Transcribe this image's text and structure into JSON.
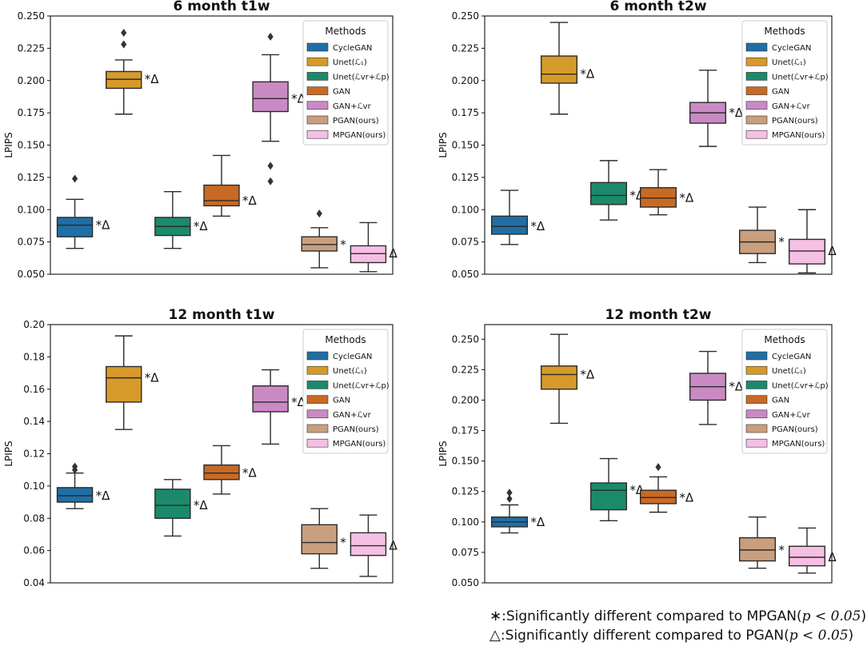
{
  "chart_data": [
    {
      "type": "box",
      "title": "6 month t1w",
      "ylabel": "LPIPS",
      "ylim": [
        0.05,
        0.25
      ],
      "yticks": [
        0.05,
        0.075,
        0.1,
        0.125,
        0.15,
        0.175,
        0.2,
        0.225,
        0.25
      ],
      "ytick_labels": [
        "0.050",
        "0.075",
        "0.100",
        "0.125",
        "0.150",
        "0.175",
        "0.200",
        "0.225",
        "0.250"
      ],
      "boxes": [
        {
          "method": "CycleGAN",
          "q1": 0.079,
          "median": 0.088,
          "q3": 0.094,
          "whislo": 0.07,
          "whishi": 0.108,
          "fliers": [
            0.124
          ],
          "annotation": "*Δ"
        },
        {
          "method": "Unet(L1)",
          "q1": 0.194,
          "median": 0.201,
          "q3": 0.207,
          "whislo": 0.174,
          "whishi": 0.216,
          "fliers": [
            0.228,
            0.237
          ],
          "annotation": "*Δ"
        },
        {
          "method": "Unet(Lvr+Lp)",
          "q1": 0.08,
          "median": 0.087,
          "q3": 0.094,
          "whislo": 0.07,
          "whishi": 0.114,
          "fliers": [],
          "annotation": "*Δ"
        },
        {
          "method": "GAN",
          "q1": 0.103,
          "median": 0.107,
          "q3": 0.119,
          "whislo": 0.095,
          "whishi": 0.142,
          "fliers": [],
          "annotation": "*Δ"
        },
        {
          "method": "GAN+Lvr",
          "q1": 0.176,
          "median": 0.186,
          "q3": 0.199,
          "whislo": 0.153,
          "whishi": 0.22,
          "fliers": [
            0.234,
            0.134,
            0.122
          ],
          "annotation": "*Δ"
        },
        {
          "method": "PGAN(ours)",
          "q1": 0.068,
          "median": 0.073,
          "q3": 0.079,
          "whislo": 0.055,
          "whishi": 0.086,
          "fliers": [
            0.097
          ],
          "annotation": "*"
        },
        {
          "method": "MPGAN(ours)",
          "q1": 0.059,
          "median": 0.066,
          "q3": 0.072,
          "whislo": 0.052,
          "whishi": 0.09,
          "fliers": [],
          "annotation": "Δ"
        }
      ]
    },
    {
      "type": "box",
      "title": "6 month t2w",
      "ylabel": "LPIPS",
      "ylim": [
        0.05,
        0.25
      ],
      "yticks": [
        0.05,
        0.075,
        0.1,
        0.125,
        0.15,
        0.175,
        0.2,
        0.225,
        0.25
      ],
      "ytick_labels": [
        "0.050",
        "0.075",
        "0.100",
        "0.125",
        "0.150",
        "0.175",
        "0.200",
        "0.225",
        "0.250"
      ],
      "boxes": [
        {
          "method": "CycleGAN",
          "q1": 0.081,
          "median": 0.087,
          "q3": 0.095,
          "whislo": 0.073,
          "whishi": 0.115,
          "fliers": [],
          "annotation": "*Δ"
        },
        {
          "method": "Unet(L1)",
          "q1": 0.198,
          "median": 0.205,
          "q3": 0.219,
          "whislo": 0.174,
          "whishi": 0.245,
          "fliers": [],
          "annotation": "*Δ"
        },
        {
          "method": "Unet(Lvr+Lp)",
          "q1": 0.104,
          "median": 0.111,
          "q3": 0.121,
          "whislo": 0.092,
          "whishi": 0.138,
          "fliers": [],
          "annotation": "*Δ"
        },
        {
          "method": "GAN",
          "q1": 0.102,
          "median": 0.109,
          "q3": 0.117,
          "whislo": 0.096,
          "whishi": 0.131,
          "fliers": [],
          "annotation": "*Δ"
        },
        {
          "method": "GAN+Lvr",
          "q1": 0.167,
          "median": 0.175,
          "q3": 0.183,
          "whislo": 0.149,
          "whishi": 0.208,
          "fliers": [],
          "annotation": "*Δ"
        },
        {
          "method": "PGAN(ours)",
          "q1": 0.066,
          "median": 0.075,
          "q3": 0.084,
          "whislo": 0.059,
          "whishi": 0.102,
          "fliers": [],
          "annotation": "*"
        },
        {
          "method": "MPGAN(ours)",
          "q1": 0.058,
          "median": 0.068,
          "q3": 0.077,
          "whislo": 0.051,
          "whishi": 0.1,
          "fliers": [],
          "annotation": "Δ"
        }
      ]
    },
    {
      "type": "box",
      "title": "12 month t1w",
      "ylabel": "LPIPS",
      "ylim": [
        0.04,
        0.2
      ],
      "yticks": [
        0.04,
        0.06,
        0.08,
        0.1,
        0.12,
        0.14,
        0.16,
        0.18,
        0.2
      ],
      "ytick_labels": [
        "0.04",
        "0.06",
        "0.08",
        "0.10",
        "0.12",
        "0.14",
        "0.16",
        "0.18",
        "0.20"
      ],
      "boxes": [
        {
          "method": "CycleGAN",
          "q1": 0.09,
          "median": 0.094,
          "q3": 0.099,
          "whislo": 0.086,
          "whishi": 0.108,
          "fliers": [
            0.11,
            0.112
          ],
          "annotation": "*Δ"
        },
        {
          "method": "Unet(L1)",
          "q1": 0.152,
          "median": 0.167,
          "q3": 0.174,
          "whislo": 0.135,
          "whishi": 0.193,
          "fliers": [],
          "annotation": "*Δ"
        },
        {
          "method": "Unet(Lvr+Lp)",
          "q1": 0.08,
          "median": 0.088,
          "q3": 0.098,
          "whislo": 0.069,
          "whishi": 0.104,
          "fliers": [],
          "annotation": "*Δ"
        },
        {
          "method": "GAN",
          "q1": 0.104,
          "median": 0.108,
          "q3": 0.113,
          "whislo": 0.095,
          "whishi": 0.125,
          "fliers": [],
          "annotation": "*Δ"
        },
        {
          "method": "GAN+Lvr",
          "q1": 0.146,
          "median": 0.152,
          "q3": 0.162,
          "whislo": 0.126,
          "whishi": 0.172,
          "fliers": [],
          "annotation": "*Δ"
        },
        {
          "method": "PGAN(ours)",
          "q1": 0.058,
          "median": 0.065,
          "q3": 0.076,
          "whislo": 0.049,
          "whishi": 0.086,
          "fliers": [],
          "annotation": "*"
        },
        {
          "method": "MPGAN(ours)",
          "q1": 0.057,
          "median": 0.063,
          "q3": 0.071,
          "whislo": 0.044,
          "whishi": 0.082,
          "fliers": [],
          "annotation": "Δ"
        }
      ]
    },
    {
      "type": "box",
      "title": "12 month t2w",
      "ylabel": "LPIPS",
      "ylim": [
        0.05,
        0.262
      ],
      "yticks": [
        0.05,
        0.075,
        0.1,
        0.125,
        0.15,
        0.175,
        0.2,
        0.225,
        0.25
      ],
      "ytick_labels": [
        "0.050",
        "0.075",
        "0.100",
        "0.125",
        "0.150",
        "0.175",
        "0.200",
        "0.225",
        "0.250"
      ],
      "boxes": [
        {
          "method": "CycleGAN",
          "q1": 0.096,
          "median": 0.1,
          "q3": 0.104,
          "whislo": 0.091,
          "whishi": 0.114,
          "fliers": [
            0.119,
            0.124
          ],
          "annotation": "*Δ"
        },
        {
          "method": "Unet(L1)",
          "q1": 0.209,
          "median": 0.221,
          "q3": 0.228,
          "whislo": 0.181,
          "whishi": 0.254,
          "fliers": [],
          "annotation": "*Δ"
        },
        {
          "method": "Unet(Lvr+Lp)",
          "q1": 0.11,
          "median": 0.126,
          "q3": 0.132,
          "whislo": 0.101,
          "whishi": 0.152,
          "fliers": [],
          "annotation": "*Δ"
        },
        {
          "method": "GAN",
          "q1": 0.115,
          "median": 0.12,
          "q3": 0.126,
          "whislo": 0.108,
          "whishi": 0.137,
          "fliers": [
            0.145
          ],
          "annotation": "*Δ"
        },
        {
          "method": "GAN+Lvr",
          "q1": 0.2,
          "median": 0.211,
          "q3": 0.222,
          "whislo": 0.18,
          "whishi": 0.24,
          "fliers": [],
          "annotation": "*Δ"
        },
        {
          "method": "PGAN(ours)",
          "q1": 0.068,
          "median": 0.077,
          "q3": 0.087,
          "whislo": 0.062,
          "whishi": 0.104,
          "fliers": [],
          "annotation": "*"
        },
        {
          "method": "MPGAN(ours)",
          "q1": 0.064,
          "median": 0.071,
          "q3": 0.08,
          "whislo": 0.058,
          "whishi": 0.095,
          "fliers": [],
          "annotation": "Δ"
        }
      ]
    }
  ],
  "legend": {
    "title": "Methods",
    "items": [
      {
        "label": "CycleGAN",
        "color": "#1f6fa6"
      },
      {
        "label": "Unet(ℒ₁)",
        "color": "#d69a2a"
      },
      {
        "label": "Unet(ℒvr+ℒp)",
        "color": "#1b8a6b"
      },
      {
        "label": "GAN",
        "color": "#c86a24"
      },
      {
        "label": "GAN+ℒvr",
        "color": "#c98ac4"
      },
      {
        "label": "PGAN(ours)",
        "color": "#c99f7e"
      },
      {
        "label": "MPGAN(ours)",
        "color": "#f6bfe4"
      }
    ]
  },
  "footnotes": {
    "star_mark": "∗",
    "star_text": ":Significantly different compared to MPGAN(",
    "delta_mark": "△",
    "delta_text": ":Significantly different compared to PGAN(",
    "pvalue": "p < 0.05",
    "close": ")"
  }
}
